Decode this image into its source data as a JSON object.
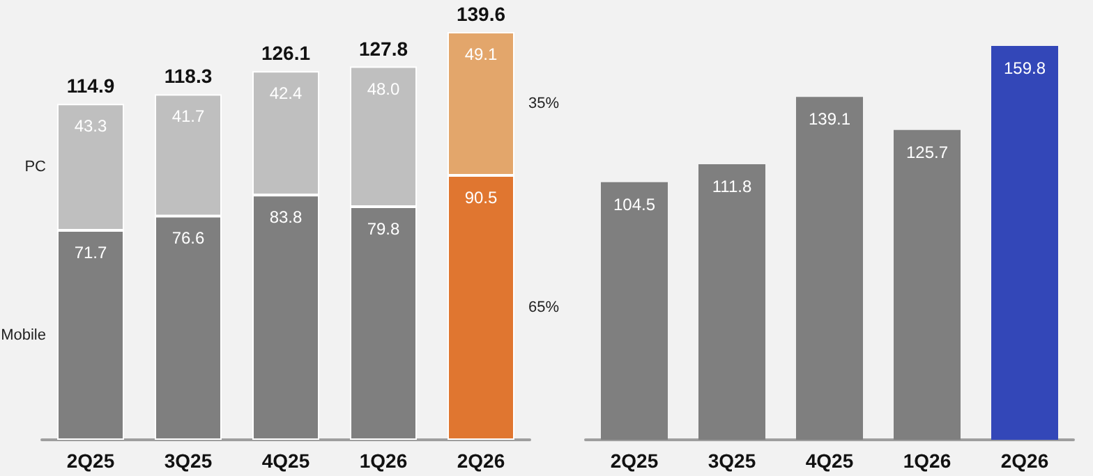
{
  "chart_data": [
    {
      "type": "bar",
      "stacked": true,
      "data_labels": true,
      "categories": [
        "2Q25",
        "3Q25",
        "4Q25",
        "1Q26",
        "2Q26"
      ],
      "series": [
        {
          "name": "Mobile",
          "colors": [
            "#7f7f7f",
            "#7f7f7f",
            "#7f7f7f",
            "#7f7f7f",
            "#e07630"
          ],
          "values": [
            71.7,
            76.6,
            83.8,
            79.8,
            90.5
          ]
        },
        {
          "name": "PC",
          "colors": [
            "#bfbfbf",
            "#bfbfbf",
            "#bfbfbf",
            "#bfbfbf",
            "#e3a66b"
          ],
          "values": [
            43.3,
            41.7,
            42.4,
            48.0,
            49.1
          ],
          "value_labels": [
            "43.3",
            "41.7",
            "42.4",
            "48.0",
            "49.1"
          ]
        }
      ],
      "totals": [
        "114.9",
        "118.3",
        "126.1",
        "127.8",
        "139.6"
      ],
      "annotations": [
        "35%",
        "65%"
      ]
    },
    {
      "type": "bar",
      "data_labels": true,
      "categories": [
        "2Q25",
        "3Q25",
        "4Q25",
        "1Q26",
        "2Q26"
      ],
      "values": [
        104.5,
        111.8,
        139.1,
        125.7,
        159.8
      ],
      "colors": [
        "#7f7f7f",
        "#7f7f7f",
        "#7f7f7f",
        "#7f7f7f",
        "#3347b8"
      ]
    }
  ]
}
